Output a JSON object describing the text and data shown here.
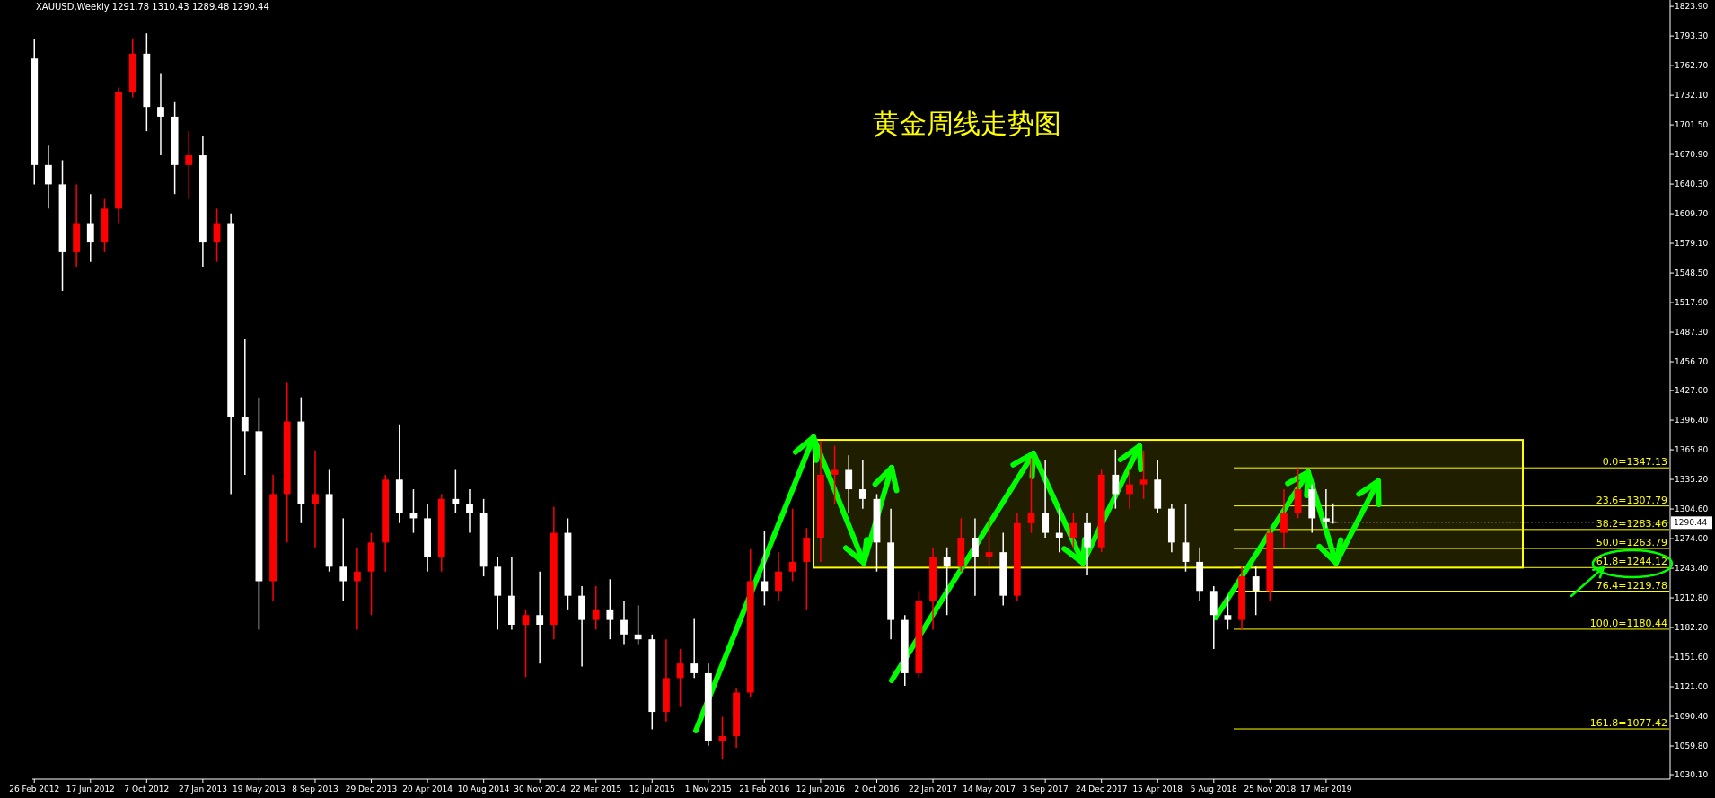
{
  "chart_data": {
    "type": "candlestick",
    "title": "黄金周线走势图",
    "annotations": [
      "XAUUSD,Weekly  1291.78 1310.43 1289.48 1290.44",
      {
        "text": "1290.44",
        "x": "2019-03-31",
        "y": 1290.44
      }
    ],
    "x": [
      "2012-02-26",
      "2012-03-25",
      "2012-04-22",
      "2012-05-20",
      "2012-06-17",
      "2012-07-15",
      "2012-08-12",
      "2012-09-09",
      "2012-10-07",
      "2012-11-04",
      "2012-12-02",
      "2012-12-30",
      "2013-01-27",
      "2013-02-24",
      "2013-03-24",
      "2013-04-21",
      "2013-05-19",
      "2013-06-16",
      "2013-07-14",
      "2013-08-11",
      "2013-09-08",
      "2013-10-06",
      "2013-11-03",
      "2013-12-01",
      "2013-12-29",
      "2014-01-26",
      "2014-02-23",
      "2014-03-23",
      "2014-04-20",
      "2014-05-18",
      "2014-06-15",
      "2014-07-13",
      "2014-08-10",
      "2014-09-07",
      "2014-10-05",
      "2014-11-02",
      "2014-11-30",
      "2014-12-28",
      "2015-01-25",
      "2015-02-22",
      "2015-03-22",
      "2015-04-19",
      "2015-05-17",
      "2015-06-14",
      "2015-07-12",
      "2015-08-09",
      "2015-09-06",
      "2015-10-04",
      "2015-11-01",
      "2015-11-29",
      "2015-12-27",
      "2016-01-24",
      "2016-02-21",
      "2016-03-20",
      "2016-04-17",
      "2016-05-15",
      "2016-06-12",
      "2016-07-10",
      "2016-08-07",
      "2016-09-04",
      "2016-10-02",
      "2016-10-30",
      "2016-11-27",
      "2016-12-25",
      "2017-01-22",
      "2017-02-19",
      "2017-03-19",
      "2017-04-16",
      "2017-05-14",
      "2017-06-11",
      "2017-07-09",
      "2017-08-06",
      "2017-09-03",
      "2017-10-01",
      "2017-10-29",
      "2017-11-26",
      "2017-12-24",
      "2018-01-21",
      "2018-02-18",
      "2018-03-18",
      "2018-04-15",
      "2018-05-13",
      "2018-06-10",
      "2018-07-08",
      "2018-08-05",
      "2018-09-02",
      "2018-09-30",
      "2018-10-28",
      "2018-11-25",
      "2018-12-23",
      "2019-01-20",
      "2019-02-17",
      "2019-03-17",
      "2019-03-31"
    ],
    "ohlc": [
      [
        1770,
        1790,
        1640,
        1660
      ],
      [
        1660,
        1680,
        1615,
        1640
      ],
      [
        1640,
        1665,
        1530,
        1570
      ],
      [
        1570,
        1640,
        1555,
        1600
      ],
      [
        1600,
        1630,
        1560,
        1580
      ],
      [
        1580,
        1625,
        1570,
        1615
      ],
      [
        1615,
        1740,
        1600,
        1735
      ],
      [
        1735,
        1790,
        1730,
        1775
      ],
      [
        1775,
        1796,
        1695,
        1720
      ],
      [
        1720,
        1755,
        1670,
        1710
      ],
      [
        1710,
        1725,
        1630,
        1660
      ],
      [
        1660,
        1695,
        1625,
        1670
      ],
      [
        1670,
        1690,
        1555,
        1580
      ],
      [
        1580,
        1615,
        1560,
        1600
      ],
      [
        1600,
        1610,
        1320,
        1400
      ],
      [
        1400,
        1480,
        1340,
        1385
      ],
      [
        1385,
        1420,
        1180,
        1230
      ],
      [
        1230,
        1340,
        1210,
        1320
      ],
      [
        1320,
        1435,
        1270,
        1395
      ],
      [
        1395,
        1420,
        1290,
        1310
      ],
      [
        1310,
        1365,
        1265,
        1320
      ],
      [
        1320,
        1345,
        1240,
        1245
      ],
      [
        1245,
        1295,
        1210,
        1230
      ],
      [
        1230,
        1265,
        1180,
        1240
      ],
      [
        1240,
        1280,
        1195,
        1270
      ],
      [
        1270,
        1340,
        1240,
        1335
      ],
      [
        1335,
        1392,
        1290,
        1300
      ],
      [
        1300,
        1325,
        1280,
        1295
      ],
      [
        1295,
        1310,
        1240,
        1255
      ],
      [
        1255,
        1320,
        1240,
        1315
      ],
      [
        1315,
        1345,
        1300,
        1310
      ],
      [
        1310,
        1325,
        1280,
        1300
      ],
      [
        1300,
        1315,
        1235,
        1245
      ],
      [
        1245,
        1255,
        1180,
        1215
      ],
      [
        1215,
        1255,
        1180,
        1185
      ],
      [
        1185,
        1200,
        1131,
        1195
      ],
      [
        1195,
        1240,
        1145,
        1185
      ],
      [
        1185,
        1307,
        1170,
        1280
      ],
      [
        1280,
        1295,
        1200,
        1215
      ],
      [
        1215,
        1225,
        1142,
        1190
      ],
      [
        1190,
        1225,
        1180,
        1200
      ],
      [
        1200,
        1232,
        1170,
        1190
      ],
      [
        1190,
        1210,
        1165,
        1175
      ],
      [
        1175,
        1205,
        1165,
        1170
      ],
      [
        1170,
        1175,
        1077,
        1095
      ],
      [
        1095,
        1170,
        1085,
        1130
      ],
      [
        1130,
        1160,
        1100,
        1145
      ],
      [
        1145,
        1191,
        1130,
        1135
      ],
      [
        1135,
        1145,
        1060,
        1065
      ],
      [
        1065,
        1090,
        1046,
        1070
      ],
      [
        1070,
        1120,
        1058,
        1115
      ],
      [
        1115,
        1263,
        1110,
        1230
      ],
      [
        1230,
        1282,
        1205,
        1220
      ],
      [
        1220,
        1260,
        1210,
        1240
      ],
      [
        1240,
        1305,
        1230,
        1250
      ],
      [
        1250,
        1285,
        1200,
        1275
      ],
      [
        1275,
        1375,
        1250,
        1340
      ],
      [
        1340,
        1370,
        1310,
        1345
      ],
      [
        1345,
        1360,
        1300,
        1325
      ],
      [
        1325,
        1355,
        1305,
        1315
      ],
      [
        1315,
        1320,
        1240,
        1270
      ],
      [
        1270,
        1305,
        1170,
        1190
      ],
      [
        1190,
        1195,
        1122,
        1135
      ],
      [
        1135,
        1220,
        1130,
        1210
      ],
      [
        1210,
        1265,
        1180,
        1255
      ],
      [
        1255,
        1265,
        1195,
        1245
      ],
      [
        1245,
        1295,
        1240,
        1275
      ],
      [
        1275,
        1295,
        1215,
        1255
      ],
      [
        1255,
        1296,
        1245,
        1260
      ],
      [
        1260,
        1280,
        1205,
        1215
      ],
      [
        1215,
        1300,
        1210,
        1290
      ],
      [
        1290,
        1357,
        1280,
        1300
      ],
      [
        1300,
        1355,
        1275,
        1280
      ],
      [
        1280,
        1305,
        1260,
        1275
      ],
      [
        1275,
        1300,
        1265,
        1290
      ],
      [
        1290,
        1300,
        1236,
        1265
      ],
      [
        1265,
        1345,
        1260,
        1340
      ],
      [
        1340,
        1366,
        1305,
        1320
      ],
      [
        1320,
        1345,
        1305,
        1330
      ],
      [
        1330,
        1365,
        1315,
        1335
      ],
      [
        1335,
        1355,
        1300,
        1305
      ],
      [
        1305,
        1310,
        1260,
        1270
      ],
      [
        1270,
        1310,
        1240,
        1250
      ],
      [
        1250,
        1265,
        1210,
        1220
      ],
      [
        1220,
        1225,
        1160,
        1195
      ],
      [
        1195,
        1215,
        1180,
        1190
      ],
      [
        1190,
        1245,
        1180,
        1235
      ],
      [
        1235,
        1245,
        1195,
        1220
      ],
      [
        1220,
        1285,
        1210,
        1280
      ],
      [
        1280,
        1325,
        1265,
        1300
      ],
      [
        1300,
        1347,
        1295,
        1325
      ],
      [
        1325,
        1330,
        1280,
        1295
      ],
      [
        1295,
        1325,
        1285,
        1291.78
      ],
      [
        1291.78,
        1310.43,
        1289.48,
        1290.44
      ]
    ],
    "colors": [
      "#ffffff",
      "#ffffff",
      "#ffffff",
      "#ff0000",
      "#ffffff",
      "#ff0000",
      "#ff0000",
      "#ff0000",
      "#ffffff",
      "#ffffff",
      "#ffffff",
      "#ff0000",
      "#ffffff",
      "#ff0000",
      "#ffffff",
      "#ffffff",
      "#ffffff",
      "#ff0000",
      "#ff0000",
      "#ffffff",
      "#ff0000",
      "#ffffff",
      "#ffffff",
      "#ff0000",
      "#ff0000",
      "#ff0000",
      "#ffffff",
      "#ffffff",
      "#ffffff",
      "#ff0000",
      "#ffffff",
      "#ffffff",
      "#ffffff",
      "#ffffff",
      "#ffffff",
      "#ff0000",
      "#ffffff",
      "#ff0000",
      "#ffffff",
      "#ffffff",
      "#ff0000",
      "#ffffff",
      "#ffffff",
      "#ffffff",
      "#ffffff",
      "#ff0000",
      "#ff0000",
      "#ffffff",
      "#ffffff",
      "#ff0000",
      "#ff0000",
      "#ff0000",
      "#ffffff",
      "#ff0000",
      "#ff0000",
      "#ff0000",
      "#ff0000",
      "#ff0000",
      "#ffffff",
      "#ffffff",
      "#ffffff",
      "#ffffff",
      "#ffffff",
      "#ff0000",
      "#ff0000",
      "#ffffff",
      "#ff0000",
      "#ffffff",
      "#ff0000",
      "#ffffff",
      "#ff0000",
      "#ff0000",
      "#ffffff",
      "#ffffff",
      "#ff0000",
      "#ffffff",
      "#ff0000",
      "#ffffff",
      "#ff0000",
      "#ff0000",
      "#ffffff",
      "#ffffff",
      "#ffffff",
      "#ffffff",
      "#ffffff",
      "#ffffff",
      "#ff0000",
      "#ffffff",
      "#ff0000",
      "#ff0000",
      "#ff0000",
      "#ffffff",
      "#ffffff",
      "#ffffff"
    ],
    "xlim": [
      "2012-02-22",
      "2021-01-31"
    ],
    "ylim": [
      1025.5,
      1830.5
    ],
    "xticks": [
      {
        "value": "2012-02-26",
        "label": "26 Feb 2012"
      },
      {
        "value": "2012-06-17",
        "label": "17 Jun 2012"
      },
      {
        "value": "2012-10-07",
        "label": "7 Oct 2012"
      },
      {
        "value": "2013-01-27",
        "label": "27 Jan 2013"
      },
      {
        "value": "2013-05-19",
        "label": "19 May 2013"
      },
      {
        "value": "2013-09-08",
        "label": "8 Sep 2013"
      },
      {
        "value": "2013-12-29",
        "label": "29 Dec 2013"
      },
      {
        "value": "2014-04-20",
        "label": "20 Apr 2014"
      },
      {
        "value": "2014-08-10",
        "label": "10 Aug 2014"
      },
      {
        "value": "2014-11-30",
        "label": "30 Nov 2014"
      },
      {
        "value": "2015-03-22",
        "label": "22 Mar 2015"
      },
      {
        "value": "2015-07-12",
        "label": "12 Jul 2015"
      },
      {
        "value": "2015-11-01",
        "label": "1 Nov 2015"
      },
      {
        "value": "2016-02-21",
        "label": "21 Feb 2016"
      },
      {
        "value": "2016-06-12",
        "label": "12 Jun 2016"
      },
      {
        "value": "2016-10-02",
        "label": "2 Oct 2016"
      },
      {
        "value": "2017-01-22",
        "label": "22 Jan 2017"
      },
      {
        "value": "2017-05-14",
        "label": "14 May 2017"
      },
      {
        "value": "2017-09-03",
        "label": "3 Sep 2017"
      },
      {
        "value": "2017-12-24",
        "label": "24 Dec 2017"
      },
      {
        "value": "2018-04-15",
        "label": "15 Apr 2018"
      },
      {
        "value": "2018-08-05",
        "label": "5 Aug 2018"
      },
      {
        "value": "2018-11-25",
        "label": "25 Nov 2018"
      },
      {
        "value": "2019-03-17",
        "label": "17 Mar 2019"
      }
    ],
    "yticks": [
      {
        "value": 1030.1,
        "label": "1030.10"
      },
      {
        "value": 1059.8,
        "label": "1059.80"
      },
      {
        "value": 1090.4,
        "label": "1090.40"
      },
      {
        "value": 1121,
        "label": "1121.00"
      },
      {
        "value": 1151.6,
        "label": "1151.60"
      },
      {
        "value": 1182.2,
        "label": "1182.20"
      },
      {
        "value": 1212.8,
        "label": "1212.80"
      },
      {
        "value": 1243.4,
        "label": "1243.40"
      },
      {
        "value": 1274,
        "label": "1274.00"
      },
      {
        "value": 1304.6,
        "label": "1304.60"
      },
      {
        "value": 1335.2,
        "label": "1335.20"
      },
      {
        "value": 1365.8,
        "label": "1365.80"
      },
      {
        "value": 1396.4,
        "label": "1396.40"
      },
      {
        "value": 1427,
        "label": "1427.00"
      },
      {
        "value": 1456.7,
        "label": "1456.70"
      },
      {
        "value": 1487.3,
        "label": "1487.30"
      },
      {
        "value": 1517.9,
        "label": "1517.90"
      },
      {
        "value": 1548.5,
        "label": "1548.50"
      },
      {
        "value": 1579.1,
        "label": "1579.10"
      },
      {
        "value": 1609.7,
        "label": "1609.70"
      },
      {
        "value": 1640.3,
        "label": "1640.30"
      },
      {
        "value": 1670.9,
        "label": "1670.90"
      },
      {
        "value": 1701.5,
        "label": "1701.50"
      },
      {
        "value": 1732.1,
        "label": "1732.10"
      },
      {
        "value": 1762.7,
        "label": "1762.70"
      },
      {
        "value": 1793.3,
        "label": "1793.30"
      },
      {
        "value": 1823.9,
        "label": "1823.90"
      }
    ],
    "ref_lines": [
      {
        "axis": "y",
        "value": 1347.13,
        "label": "0.0=1347.13",
        "color": "#ffff00"
      },
      {
        "axis": "y",
        "value": 1307.79,
        "label": "23.6=1307.79",
        "color": "#ffff00"
      },
      {
        "axis": "y",
        "value": 1283.46,
        "label": "38.2=1283.46",
        "color": "#ffff00"
      },
      {
        "axis": "y",
        "value": 1263.79,
        "label": "50.0=1263.79",
        "color": "#ffff00"
      },
      {
        "axis": "y",
        "value": 1244.12,
        "label": "61.8=1244.12",
        "color": "#ffff00"
      },
      {
        "axis": "y",
        "value": 1219.78,
        "label": "76.4=1219.78",
        "color": "#ffff00"
      },
      {
        "axis": "y",
        "value": 1180.44,
        "label": "100.0=1180.44",
        "color": "#ffff00"
      },
      {
        "axis": "y",
        "value": 1077.42,
        "label": "161.8=1077.42",
        "color": "#ffff00"
      }
    ],
    "bands": [
      {
        "axis": "y",
        "from": 1244,
        "to": 1376,
        "color": "#ffff00"
      }
    ]
  }
}
